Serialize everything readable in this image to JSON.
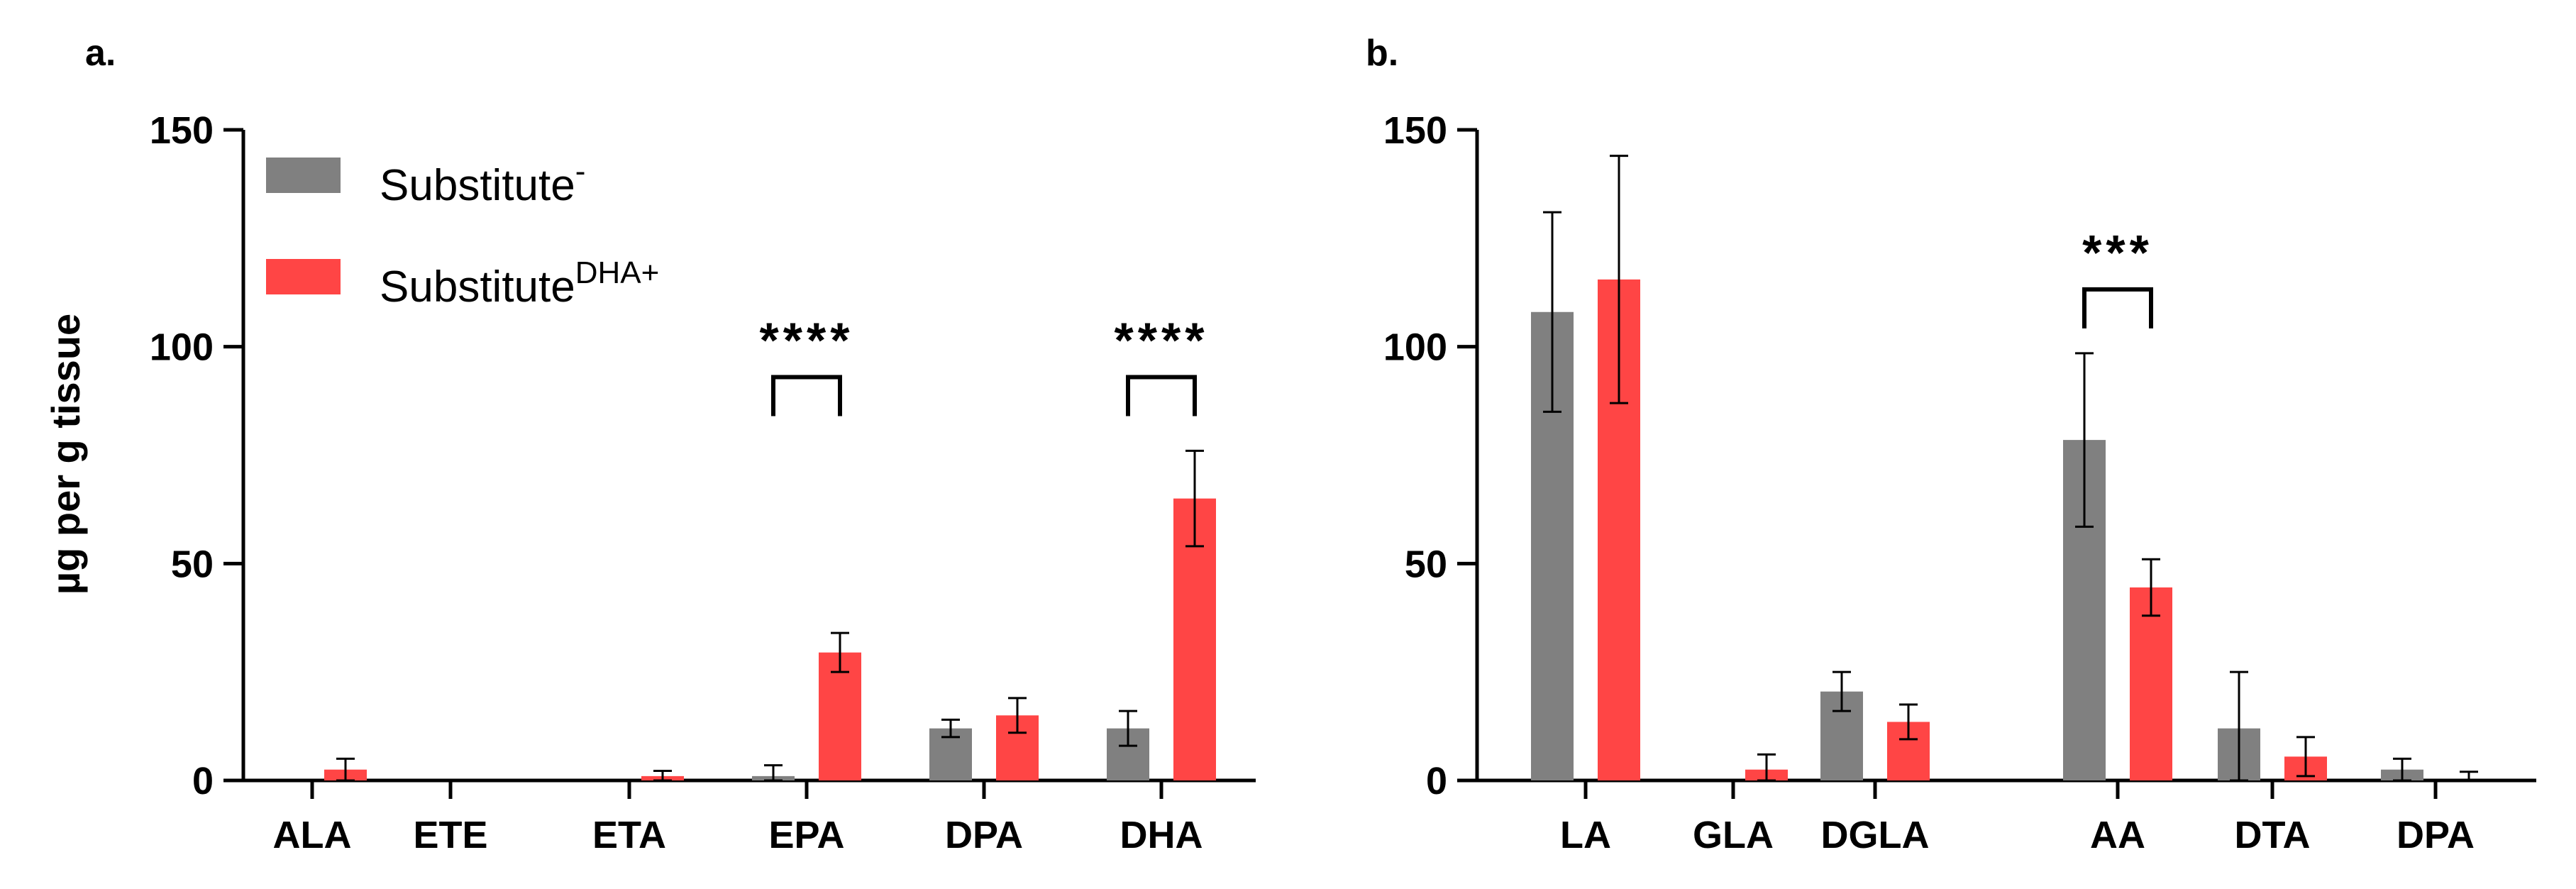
{
  "chart_data": [
    {
      "type": "bar",
      "panel": "a.",
      "title": "",
      "xlabel": "",
      "ylabel": "µg per g tissue",
      "ylim": [
        0,
        150
      ],
      "yticks": [
        0,
        50,
        100,
        150
      ],
      "categories": [
        "ALA",
        "ETE",
        "ETA",
        "EPA",
        "DPA",
        "DHA"
      ],
      "series": [
        {
          "name": "Substitute",
          "sup": "-",
          "color": "#808080",
          "values": [
            0,
            0,
            0,
            1,
            12,
            12
          ],
          "errors": [
            0,
            0,
            0,
            2.5,
            2,
            4
          ]
        },
        {
          "name": "Substitute",
          "sup": "DHA+",
          "color": "#ff4545",
          "values": [
            2.5,
            0,
            1,
            29.5,
            15,
            65
          ],
          "errors": [
            2.5,
            0,
            1.2,
            4.5,
            4,
            11
          ]
        }
      ],
      "significance": [
        {
          "category": "EPA",
          "label": "****"
        },
        {
          "category": "DHA",
          "label": "****"
        }
      ],
      "legend": "top-left"
    },
    {
      "type": "bar",
      "panel": "b.",
      "title": "",
      "xlabel": "",
      "ylabel": "",
      "ylim": [
        0,
        150
      ],
      "yticks": [
        0,
        50,
        100,
        150
      ],
      "categories": [
        "LA",
        "GLA",
        "DGLA",
        "AA",
        "DTA",
        "DPA"
      ],
      "series": [
        {
          "name": "Substitute",
          "sup": "-",
          "color": "#808080",
          "values": [
            108,
            0,
            20.5,
            78.5,
            12,
            2.5
          ],
          "errors": [
            23,
            0,
            4.5,
            20,
            13,
            2.5
          ]
        },
        {
          "name": "Substitute",
          "sup": "DHA+",
          "color": "#ff4545",
          "values": [
            115.5,
            2.5,
            13.5,
            44.5,
            5.5,
            0
          ],
          "errors": [
            28.5,
            3.5,
            4,
            6.5,
            4.5,
            2
          ]
        }
      ],
      "significance": [
        {
          "category": "AA",
          "label": "***"
        }
      ]
    }
  ]
}
